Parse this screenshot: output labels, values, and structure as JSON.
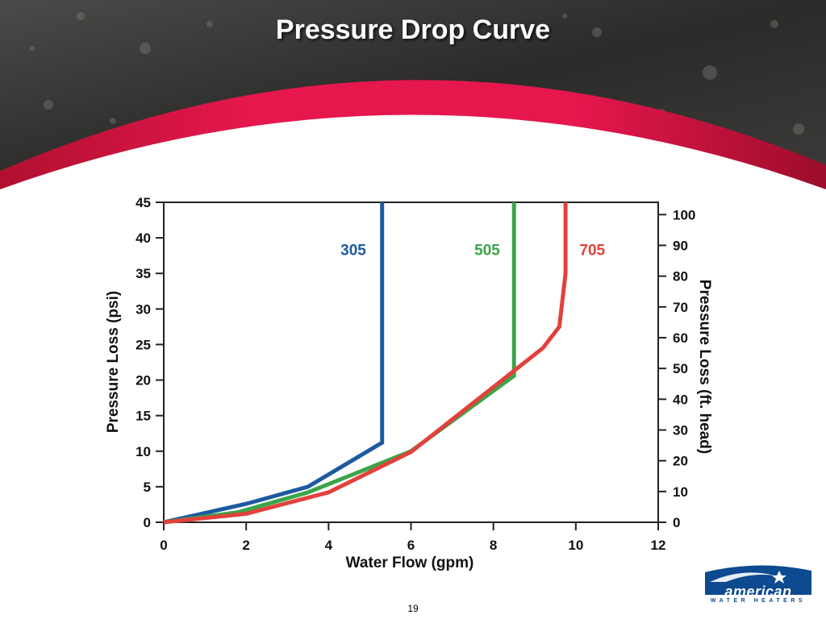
{
  "slide": {
    "title": "Pressure Drop Curve",
    "page_number": "19",
    "colors": {
      "banner_dark": "#2e2e2e",
      "banner_red": "#e0174a",
      "banner_red_dark": "#a3102f"
    }
  },
  "logo": {
    "brand": "american",
    "tagline": "WATER HEATERS",
    "colors": {
      "primary": "#0d4a8f"
    }
  },
  "chart_data": {
    "type": "line",
    "title": "",
    "xlabel": "Water Flow (gpm)",
    "ylabel": "Pressure Loss (psi)",
    "y2label": "Pressure Loss (ft. head)",
    "xlim": [
      0,
      12
    ],
    "ylim": [
      0,
      45
    ],
    "y2lim": [
      0,
      104
    ],
    "x_ticks": [
      0,
      2,
      4,
      6,
      8,
      10,
      12
    ],
    "y_ticks": [
      0,
      5,
      10,
      15,
      20,
      25,
      30,
      35,
      40,
      45
    ],
    "y2_ticks": [
      0,
      10,
      20,
      30,
      40,
      50,
      60,
      70,
      80,
      90,
      100
    ],
    "grid": false,
    "series": [
      {
        "name": "305",
        "color": "#1d5aa0",
        "points": [
          [
            0,
            0
          ],
          [
            2,
            2.6
          ],
          [
            3.5,
            5
          ],
          [
            5.3,
            11.2
          ],
          [
            5.3,
            45
          ]
        ],
        "label_at": [
          4.6,
          37.6
        ]
      },
      {
        "name": "505",
        "color": "#3aa54a",
        "points": [
          [
            0,
            0
          ],
          [
            1.8,
            1.4
          ],
          [
            3.5,
            4.2
          ],
          [
            6,
            10
          ],
          [
            8.5,
            20.6
          ],
          [
            8.5,
            45
          ]
        ],
        "label_at": [
          7.85,
          37.6
        ]
      },
      {
        "name": "705",
        "color": "#e2413b",
        "points": [
          [
            0,
            0
          ],
          [
            2,
            1.2
          ],
          [
            4,
            4.2
          ],
          [
            6,
            9.9
          ],
          [
            9.2,
            24.5
          ],
          [
            9.6,
            27.5
          ],
          [
            9.75,
            35
          ],
          [
            9.75,
            45
          ]
        ],
        "label_at": [
          10.4,
          37.6
        ]
      }
    ]
  }
}
